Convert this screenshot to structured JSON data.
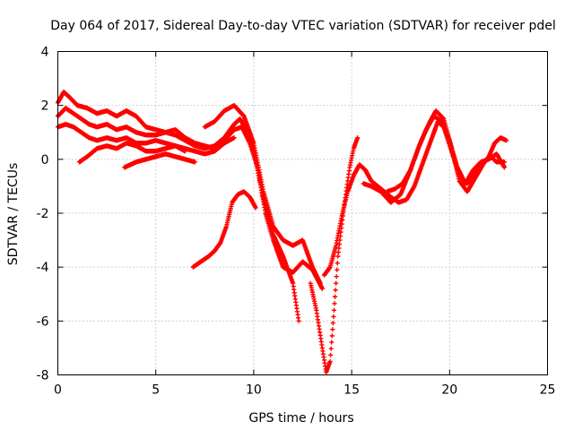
{
  "chart_data": {
    "type": "scatter",
    "title": "Day 064 of 2017, Sidereal Day-to-day VTEC variation (SDTVAR) for receiver pdel",
    "xlabel": "GPS time / hours",
    "ylabel": "SDTVAR / TECUs",
    "xlim": [
      0,
      25
    ],
    "ylim": [
      -8,
      4
    ],
    "xticks": [
      0,
      5,
      10,
      15,
      20,
      25
    ],
    "yticks": [
      -8,
      -6,
      -4,
      -2,
      0,
      2,
      4
    ],
    "xtick_labels": [
      "0",
      "5",
      "10",
      "15",
      "20",
      "25"
    ],
    "ytick_labels": [
      "-8",
      "-6",
      "-4",
      "-2",
      "0",
      "2",
      "4"
    ],
    "grid": true,
    "marker": "plus",
    "color": "#ff0000",
    "series": [
      {
        "values": [
          [
            0.0,
            2.1
          ],
          [
            0.3,
            2.5
          ],
          [
            0.6,
            2.3
          ],
          [
            1.0,
            2.0
          ],
          [
            1.5,
            1.9
          ],
          [
            2.0,
            1.7
          ],
          [
            2.5,
            1.8
          ],
          [
            3.0,
            1.6
          ],
          [
            3.5,
            1.8
          ],
          [
            4.0,
            1.6
          ],
          [
            4.5,
            1.2
          ],
          [
            5.0,
            1.1
          ],
          [
            5.5,
            1.0
          ],
          [
            6.0,
            0.9
          ],
          [
            6.5,
            0.7
          ],
          [
            7.0,
            0.5
          ],
          [
            7.5,
            0.4
          ],
          [
            8.0,
            0.5
          ],
          [
            8.5,
            0.8
          ],
          [
            9.0,
            1.3
          ],
          [
            9.3,
            1.5
          ],
          [
            9.6,
            1.1
          ],
          [
            10.0,
            0.3
          ],
          [
            10.5,
            -1.5
          ],
          [
            11.0,
            -2.8
          ],
          [
            11.5,
            -3.6
          ],
          [
            12.0,
            -4.6
          ],
          [
            12.3,
            -6.0
          ]
        ]
      },
      {
        "values": [
          [
            0.0,
            1.6
          ],
          [
            0.4,
            1.9
          ],
          [
            0.8,
            1.7
          ],
          [
            1.2,
            1.5
          ],
          [
            1.6,
            1.3
          ],
          [
            2.0,
            1.2
          ],
          [
            2.5,
            1.3
          ],
          [
            3.0,
            1.1
          ],
          [
            3.5,
            1.2
          ],
          [
            4.0,
            1.0
          ],
          [
            4.5,
            0.9
          ],
          [
            5.0,
            0.9
          ],
          [
            5.5,
            1.0
          ],
          [
            6.0,
            1.1
          ],
          [
            6.5,
            0.8
          ],
          [
            7.0,
            0.6
          ],
          [
            7.5,
            0.5
          ],
          [
            8.0,
            0.4
          ],
          [
            8.5,
            0.7
          ],
          [
            9.0,
            1.1
          ],
          [
            9.4,
            1.2
          ],
          [
            9.8,
            0.6
          ],
          [
            10.2,
            -0.3
          ],
          [
            10.6,
            -2.0
          ],
          [
            11.0,
            -3.0
          ],
          [
            11.5,
            -4.0
          ],
          [
            12.0,
            -4.2
          ],
          [
            12.5,
            -3.8
          ],
          [
            13.0,
            -4.1
          ],
          [
            13.5,
            -4.8
          ]
        ]
      },
      {
        "values": [
          [
            0.0,
            1.2
          ],
          [
            0.4,
            1.3
          ],
          [
            0.8,
            1.2
          ],
          [
            1.2,
            1.0
          ],
          [
            1.6,
            0.8
          ],
          [
            2.0,
            0.7
          ],
          [
            2.5,
            0.8
          ],
          [
            3.0,
            0.7
          ],
          [
            3.5,
            0.8
          ],
          [
            4.0,
            0.6
          ],
          [
            4.5,
            0.6
          ],
          [
            5.0,
            0.7
          ],
          [
            5.5,
            0.6
          ],
          [
            6.0,
            0.5
          ],
          [
            6.5,
            0.4
          ],
          [
            7.0,
            0.3
          ],
          [
            7.5,
            0.2
          ],
          [
            8.0,
            0.3
          ],
          [
            8.5,
            0.6
          ],
          [
            9.0,
            0.8
          ]
        ]
      },
      {
        "values": [
          [
            1.1,
            -0.1
          ],
          [
            1.5,
            0.1
          ],
          [
            2.0,
            0.4
          ],
          [
            2.5,
            0.5
          ],
          [
            3.0,
            0.4
          ],
          [
            3.5,
            0.6
          ],
          [
            4.0,
            0.5
          ],
          [
            4.5,
            0.3
          ],
          [
            5.0,
            0.3
          ],
          [
            5.5,
            0.4
          ],
          [
            6.0,
            0.5
          ],
          [
            6.5,
            0.3
          ]
        ]
      },
      {
        "values": [
          [
            3.4,
            -0.3
          ],
          [
            4.0,
            -0.1
          ],
          [
            4.5,
            0.0
          ],
          [
            5.0,
            0.1
          ],
          [
            5.5,
            0.2
          ],
          [
            6.0,
            0.1
          ],
          [
            6.5,
            0.0
          ],
          [
            7.0,
            -0.1
          ]
        ]
      },
      {
        "values": [
          [
            7.5,
            1.2
          ],
          [
            8.0,
            1.4
          ],
          [
            8.5,
            1.8
          ],
          [
            9.0,
            2.0
          ],
          [
            9.5,
            1.6
          ],
          [
            10.0,
            0.6
          ],
          [
            10.5,
            -1.2
          ],
          [
            11.0,
            -2.5
          ],
          [
            11.5,
            -3.0
          ],
          [
            12.0,
            -3.2
          ],
          [
            12.5,
            -3.0
          ],
          [
            13.0,
            -4.0
          ],
          [
            13.4,
            -4.6
          ]
        ]
      },
      {
        "values": [
          [
            6.9,
            -4.0
          ],
          [
            7.3,
            -3.8
          ],
          [
            7.7,
            -3.6
          ],
          [
            8.0,
            -3.4
          ],
          [
            8.3,
            -3.1
          ],
          [
            8.6,
            -2.5
          ],
          [
            8.9,
            -1.6
          ],
          [
            9.2,
            -1.3
          ],
          [
            9.5,
            -1.2
          ],
          [
            9.8,
            -1.4
          ],
          [
            10.1,
            -1.8
          ]
        ]
      },
      {
        "values": [
          [
            12.9,
            -4.6
          ],
          [
            13.2,
            -5.6
          ],
          [
            13.5,
            -7.0
          ],
          [
            13.7,
            -7.9
          ],
          [
            13.9,
            -7.5
          ],
          [
            14.1,
            -5.6
          ],
          [
            14.3,
            -3.6
          ],
          [
            14.6,
            -1.8
          ],
          [
            14.9,
            -0.3
          ],
          [
            15.1,
            0.4
          ],
          [
            15.3,
            0.8
          ]
        ]
      },
      {
        "values": [
          [
            13.6,
            -4.3
          ],
          [
            13.9,
            -4.0
          ],
          [
            14.2,
            -3.2
          ],
          [
            14.5,
            -2.1
          ],
          [
            14.8,
            -1.2
          ],
          [
            15.1,
            -0.6
          ],
          [
            15.4,
            -0.2
          ],
          [
            15.7,
            -0.4
          ],
          [
            16.0,
            -0.8
          ],
          [
            16.5,
            -1.1
          ],
          [
            17.0,
            -1.4
          ],
          [
            17.4,
            -1.6
          ],
          [
            17.8,
            -1.5
          ],
          [
            18.2,
            -1.0
          ],
          [
            18.6,
            -0.2
          ],
          [
            19.0,
            0.6
          ],
          [
            19.4,
            1.4
          ],
          [
            19.7,
            1.2
          ],
          [
            20.1,
            0.3
          ],
          [
            20.5,
            -0.6
          ],
          [
            20.9,
            -0.9
          ],
          [
            21.3,
            -0.5
          ],
          [
            21.7,
            -0.1
          ],
          [
            22.1,
            0.1
          ],
          [
            22.4,
            -0.1
          ],
          [
            22.8,
            -0.1
          ]
        ]
      },
      {
        "values": [
          [
            15.6,
            -0.9
          ],
          [
            16.0,
            -1.0
          ],
          [
            16.5,
            -1.2
          ],
          [
            17.0,
            -1.6
          ],
          [
            17.5,
            -1.3
          ],
          [
            18.0,
            -0.4
          ],
          [
            18.5,
            0.6
          ],
          [
            19.0,
            1.4
          ],
          [
            19.3,
            1.8
          ],
          [
            19.7,
            1.5
          ],
          [
            20.1,
            0.4
          ],
          [
            20.5,
            -0.8
          ],
          [
            20.9,
            -1.2
          ],
          [
            21.3,
            -0.7
          ],
          [
            21.7,
            -0.2
          ],
          [
            22.0,
            0.1
          ],
          [
            22.3,
            0.6
          ],
          [
            22.6,
            0.8
          ],
          [
            22.9,
            0.7
          ]
        ]
      },
      {
        "values": [
          [
            16.8,
            -1.2
          ],
          [
            17.2,
            -1.1
          ],
          [
            17.6,
            -0.9
          ],
          [
            18.0,
            -0.4
          ],
          [
            18.4,
            0.4
          ],
          [
            18.8,
            1.1
          ],
          [
            19.2,
            1.6
          ],
          [
            19.6,
            1.4
          ],
          [
            20.0,
            0.7
          ],
          [
            20.4,
            -0.3
          ],
          [
            20.8,
            -0.9
          ],
          [
            21.2,
            -0.4
          ],
          [
            21.6,
            -0.1
          ],
          [
            22.0,
            0.0
          ],
          [
            22.4,
            0.2
          ],
          [
            22.8,
            -0.3
          ]
        ]
      }
    ]
  }
}
